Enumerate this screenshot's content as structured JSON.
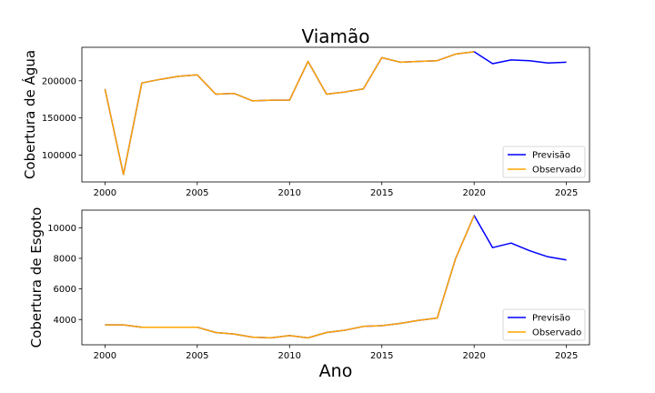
{
  "figure": {
    "title": "Viamão",
    "xlabel": "Ano"
  },
  "colors": {
    "forecast": "#0000ff",
    "observed": "#ffa500"
  },
  "chart_data": [
    {
      "type": "line",
      "title": "Viamão",
      "xlabel": "",
      "ylabel": "Cobertura de Água",
      "xlim": [
        1998.75,
        2026.25
      ],
      "ylim": [
        64000,
        245000
      ],
      "xticks": [
        2000,
        2005,
        2010,
        2015,
        2020,
        2025
      ],
      "yticks": [
        100000,
        150000,
        200000
      ],
      "legend_position": "lower-right",
      "grid": false,
      "series": [
        {
          "name": "Previsão",
          "color": "#0000ff",
          "x": [
            2000,
            2001,
            2002,
            2003,
            2004,
            2005,
            2006,
            2007,
            2008,
            2009,
            2010,
            2011,
            2012,
            2013,
            2014,
            2015,
            2016,
            2017,
            2018,
            2019,
            2020,
            2021,
            2022,
            2023,
            2024,
            2025
          ],
          "y": [
            189000,
            74000,
            197000,
            202000,
            206000,
            208000,
            182000,
            183000,
            173000,
            174000,
            174000,
            226000,
            182000,
            185000,
            189000,
            231000,
            225000,
            226000,
            227000,
            236000,
            239000,
            223000,
            228000,
            227000,
            224000,
            225000
          ]
        },
        {
          "name": "Observado",
          "color": "#ffa500",
          "x": [
            2000,
            2001,
            2002,
            2003,
            2004,
            2005,
            2006,
            2007,
            2008,
            2009,
            2010,
            2011,
            2012,
            2013,
            2014,
            2015,
            2016,
            2017,
            2018,
            2019,
            2020
          ],
          "y": [
            189000,
            74000,
            197000,
            202000,
            206000,
            208000,
            182000,
            183000,
            173000,
            174000,
            174000,
            226000,
            182000,
            185000,
            189000,
            231000,
            225000,
            226000,
            227000,
            236000,
            239000
          ]
        }
      ]
    },
    {
      "type": "line",
      "title": "",
      "xlabel": "Ano",
      "ylabel": "Cobertura de Esgoto",
      "xlim": [
        1998.75,
        2026.25
      ],
      "ylim": [
        2350,
        11150
      ],
      "xticks": [
        2000,
        2005,
        2010,
        2015,
        2020,
        2025
      ],
      "yticks": [
        4000,
        6000,
        8000,
        10000
      ],
      "legend_position": "lower-right",
      "grid": false,
      "series": [
        {
          "name": "Previsão",
          "color": "#0000ff",
          "x": [
            2000,
            2001,
            2002,
            2003,
            2004,
            2005,
            2006,
            2007,
            2008,
            2009,
            2010,
            2011,
            2012,
            2013,
            2014,
            2015,
            2016,
            2017,
            2018,
            2019,
            2020,
            2021,
            2022,
            2023,
            2024,
            2025
          ],
          "y": [
            3650,
            3650,
            3500,
            3500,
            3500,
            3500,
            3150,
            3050,
            2850,
            2800,
            2950,
            2800,
            3150,
            3300,
            3550,
            3600,
            3750,
            3950,
            4100,
            8000,
            10800,
            8700,
            9000,
            8500,
            8100,
            7900
          ]
        },
        {
          "name": "Observado",
          "color": "#ffa500",
          "x": [
            2000,
            2001,
            2002,
            2003,
            2004,
            2005,
            2006,
            2007,
            2008,
            2009,
            2010,
            2011,
            2012,
            2013,
            2014,
            2015,
            2016,
            2017,
            2018,
            2019,
            2020
          ],
          "y": [
            3650,
            3650,
            3500,
            3500,
            3500,
            3500,
            3150,
            3050,
            2850,
            2800,
            2950,
            2800,
            3150,
            3300,
            3550,
            3600,
            3750,
            3950,
            4100,
            8000,
            10800
          ]
        }
      ]
    }
  ]
}
